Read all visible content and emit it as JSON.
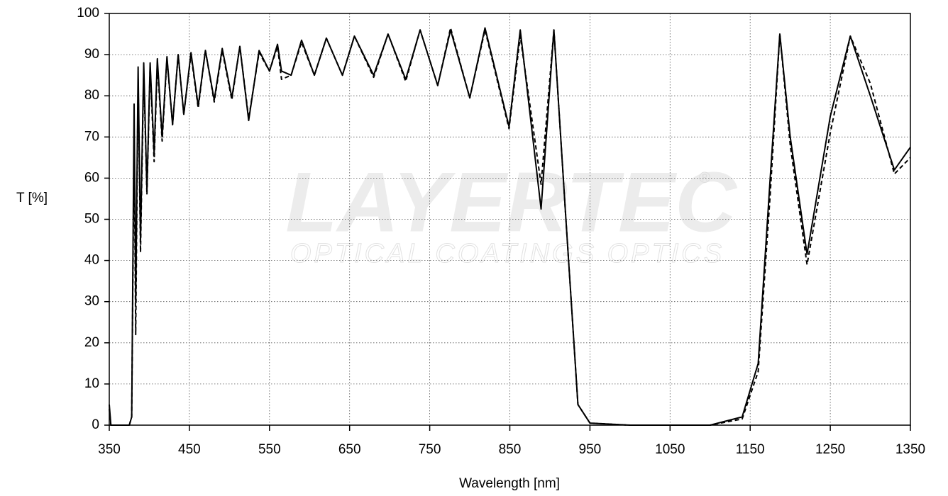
{
  "chart_data": {
    "type": "line",
    "x_label": "Wavelength [nm]",
    "y_label": "T [%]",
    "watermark": {
      "logo": "LAYERTEC",
      "tagline": "OPTICAL COATINGS  OPTICS",
      "mark": "®"
    },
    "xlim": [
      350,
      1350
    ],
    "xticks": [
      350,
      450,
      550,
      650,
      750,
      850,
      950,
      1050,
      1150,
      1250,
      1350
    ],
    "ylim": [
      0,
      100
    ],
    "yticks": [
      0,
      10,
      20,
      30,
      40,
      50,
      60,
      70,
      80,
      90,
      100
    ],
    "grid": true,
    "x": [
      350,
      352,
      375,
      378,
      381,
      383,
      386,
      389,
      393,
      397,
      401,
      406,
      410,
      416,
      422,
      429,
      436,
      443,
      452,
      461,
      470,
      481,
      491,
      503,
      513,
      524,
      537,
      550,
      560,
      565,
      577,
      590,
      606,
      621,
      641,
      656,
      680,
      698,
      720,
      738,
      760,
      776,
      800,
      819,
      849,
      863,
      889,
      905,
      920,
      935,
      950,
      1000,
      1100,
      1140,
      1160,
      1175,
      1187,
      1200,
      1221,
      1250,
      1275,
      1300,
      1330,
      1350
    ],
    "series": [
      {
        "color": "#000000",
        "dash": false,
        "values": [
          5,
          0,
          0,
          2,
          78,
          30,
          87,
          45,
          88,
          57,
          88,
          66,
          89,
          70,
          89.5,
          73,
          90,
          75.5,
          90.5,
          77.5,
          91,
          79,
          91.5,
          79.5,
          92,
          74,
          91,
          86,
          92.5,
          86,
          85,
          93.5,
          85,
          94,
          85,
          94.5,
          85,
          95,
          84,
          96,
          82.5,
          96,
          79.5,
          96.5,
          72.5,
          96,
          52.5,
          96,
          50,
          5,
          0.5,
          0,
          0,
          2,
          15,
          60,
          95,
          70,
          41.5,
          75,
          94.5,
          80,
          62,
          67.5
        ]
      },
      {
        "color": "#000000",
        "dash": true,
        "values": [
          4,
          0,
          0,
          2,
          70,
          22,
          84,
          42,
          86,
          56,
          87,
          64,
          88,
          69,
          89,
          73,
          90,
          75.5,
          90,
          77,
          91,
          78.5,
          91,
          79,
          92,
          74.5,
          90.5,
          86,
          92,
          84,
          85,
          93,
          85,
          94,
          85,
          94.5,
          84.5,
          95,
          83.5,
          96,
          82.5,
          96.5,
          79.5,
          96,
          72,
          94.5,
          58.5,
          96,
          50,
          5,
          0.5,
          0,
          0,
          1.5,
          13,
          56,
          95,
          68,
          39,
          71,
          94.5,
          83,
          61,
          65
        ]
      }
    ]
  }
}
